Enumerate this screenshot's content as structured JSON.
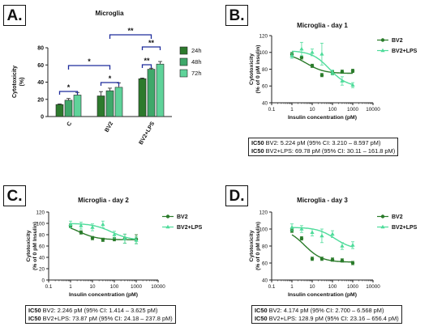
{
  "colors": {
    "dark_green": "#2d7a2d",
    "mid_green": "#3fa86a",
    "light_green": "#5fd39a",
    "bv2_line": "#2a7b2a",
    "lps_line": "#4fdc9b",
    "bracket": "#1f2c9c",
    "axis": "#222222"
  },
  "chart_data": [
    {
      "panel": "A.",
      "type": "bar",
      "title": "Microglia",
      "ylabel": "Cytotoxicity\n(%)",
      "ylim": [
        0,
        80
      ],
      "yticks": [
        0,
        20,
        40,
        60,
        80
      ],
      "categories": [
        "C",
        "BV2",
        "BV2+LPS"
      ],
      "series": [
        {
          "name": "24h",
          "color": "#2d7a2d",
          "values": [
            14,
            24,
            44
          ],
          "errors": [
            0.6,
            5,
            0.8
          ]
        },
        {
          "name": "48h",
          "color": "#3fa86a",
          "values": [
            19,
            30,
            55
          ],
          "errors": [
            2,
            3,
            1.2
          ]
        },
        {
          "name": "72h",
          "color": "#5fd39a",
          "values": [
            25,
            34,
            61
          ],
          "errors": [
            3,
            5,
            3
          ]
        }
      ],
      "significance": [
        {
          "label": "*",
          "from": "C 24h",
          "to": "C 72h"
        },
        {
          "label": "*",
          "from": "BV2 24h",
          "to": "BV2 72h"
        },
        {
          "label": "*",
          "from": "C",
          "to": "BV2"
        },
        {
          "label": "**",
          "from": "BV2+LPS 24h",
          "to": "BV2+LPS 48h"
        },
        {
          "label": "**",
          "from": "BV2+LPS 24h",
          "to": "BV2+LPS 72h"
        },
        {
          "label": "**",
          "from": "BV2",
          "to": "BV2+LPS"
        }
      ],
      "legend_position": "right"
    },
    {
      "panel": "B.",
      "type": "scatter",
      "title": "Microglia - day 1",
      "xlabel": "Insulin concentration (pM)",
      "ylabel": "Cytotoxicity\n(% of 0 pM insulin)",
      "xscale": "log",
      "xlim": [
        0.1,
        10000
      ],
      "xticks": [
        "0.1",
        "1",
        "10",
        "100",
        "1000",
        "10000"
      ],
      "ylim": [
        40,
        120
      ],
      "yticks": [
        40,
        60,
        80,
        100,
        120
      ],
      "series": [
        {
          "name": "BV2",
          "marker": "circle",
          "color": "#2a7b2a",
          "x": [
            1,
            3,
            10,
            30,
            100,
            300,
            1000
          ],
          "y": [
            98,
            94,
            84,
            73,
            76,
            77,
            78
          ],
          "err": [
            2,
            2,
            2,
            2,
            2,
            2,
            2
          ],
          "fit_top": 99,
          "fit_bottom": 75,
          "ic50": 5.224
        },
        {
          "name": "BV2+LPS",
          "marker": "triangle",
          "color": "#4fdc9b",
          "x": [
            1,
            3,
            10,
            30,
            100,
            300,
            1000
          ],
          "y": [
            96,
            104,
            100,
            98,
            76,
            66,
            61
          ],
          "err": [
            3,
            8,
            4,
            13,
            3,
            5,
            3
          ],
          "fit_top": 102,
          "fit_bottom": 59,
          "ic50": 69.78
        }
      ],
      "legend_position": "top-right",
      "ic50_box": {
        "line1_bold": "IC50",
        "line1": " BV2: 5.224 pM (95% CI: 3.210 – 8.597 pM)",
        "line2_bold": "IC50",
        "line2": " BV2+LPS: 69.78 pM (95% CI: 30.11 – 161.8 pM)"
      }
    },
    {
      "panel": "C.",
      "type": "scatter",
      "title": "Microglia - day 2",
      "xlabel": "Insulin concentration (pM)",
      "ylabel": "Cytotoxicity\n(% of 0 pM Insulin)",
      "xscale": "log",
      "xlim": [
        0.1,
        10000
      ],
      "xticks": [
        "0.1",
        "1",
        "10",
        "100",
        "1000",
        "10000"
      ],
      "ylim": [
        0,
        120
      ],
      "yticks": [
        0,
        20,
        40,
        60,
        80,
        100,
        120
      ],
      "series": [
        {
          "name": "BV2",
          "marker": "circle",
          "color": "#2a7b2a",
          "x": [
            1,
            3,
            10,
            30,
            100,
            300,
            1000
          ],
          "y": [
            96,
            84,
            74,
            71,
            72,
            73,
            72
          ],
          "err": [
            3,
            3,
            3,
            3,
            3,
            8,
            8
          ],
          "fit_top": 101,
          "fit_bottom": 71,
          "ic50": 2.246
        },
        {
          "name": "BV2+LPS",
          "marker": "triangle",
          "color": "#4fdc9b",
          "x": [
            1,
            3,
            10,
            30,
            100,
            300,
            1000
          ],
          "y": [
            98,
            96,
            93,
            98,
            80,
            73,
            70
          ],
          "err": [
            6,
            6,
            6,
            6,
            6,
            8,
            6
          ],
          "fit_top": 100,
          "fit_bottom": 70,
          "ic50": 73.87
        }
      ],
      "legend_position": "top-right",
      "ic50_box": {
        "line1_bold": "IC50",
        "line1": " BV2: 2.246 pM (95% CI: 1.414 – 3.625 pM)",
        "line2_bold": "IC50",
        "line2": " BV2+LPS: 73.87 pM (95% CI: 24.18 – 237.8 pM)"
      }
    },
    {
      "panel": "D.",
      "type": "scatter",
      "title": "Microglia - day 3",
      "xlabel": "Insulin concentration (pM)",
      "ylabel": "Cytotoxicity\n(% of 0 pM Insulin)",
      "xscale": "log",
      "xlim": [
        0.1,
        10000
      ],
      "xticks": [
        "0.1",
        "1",
        "10",
        "100",
        "1000",
        "10000"
      ],
      "ylim": [
        40,
        120
      ],
      "yticks": [
        40,
        60,
        80,
        100,
        120
      ],
      "series": [
        {
          "name": "BV2",
          "marker": "circle",
          "color": "#2a7b2a",
          "x": [
            1,
            3,
            10,
            30,
            100,
            300,
            1000
          ],
          "y": [
            98,
            89,
            65,
            65,
            64,
            63,
            60
          ],
          "err": [
            2,
            2,
            2,
            2,
            2,
            2,
            2
          ],
          "fit_top": 101,
          "fit_bottom": 61,
          "ic50": 4.174
        },
        {
          "name": "BV2+LPS",
          "marker": "triangle",
          "color": "#4fdc9b",
          "x": [
            1,
            3,
            10,
            30,
            100,
            300,
            1000
          ],
          "y": [
            102,
            100,
            96,
            92,
            94,
            80,
            81
          ],
          "err": [
            4,
            4,
            4,
            8,
            4,
            4,
            4
          ],
          "fit_top": 102,
          "fit_bottom": 76,
          "ic50": 128.9
        }
      ],
      "legend_position": "top-right",
      "ic50_box": {
        "line1_bold": "IC50",
        "line1": " BV2: 4.174 pM (95% CI: 2.700 – 6.568 pM)",
        "line2_bold": "IC50",
        "line2": " BV2+LPS: 128.9 pM (95% CI: 23.16 – 656.4 pM)"
      }
    }
  ]
}
